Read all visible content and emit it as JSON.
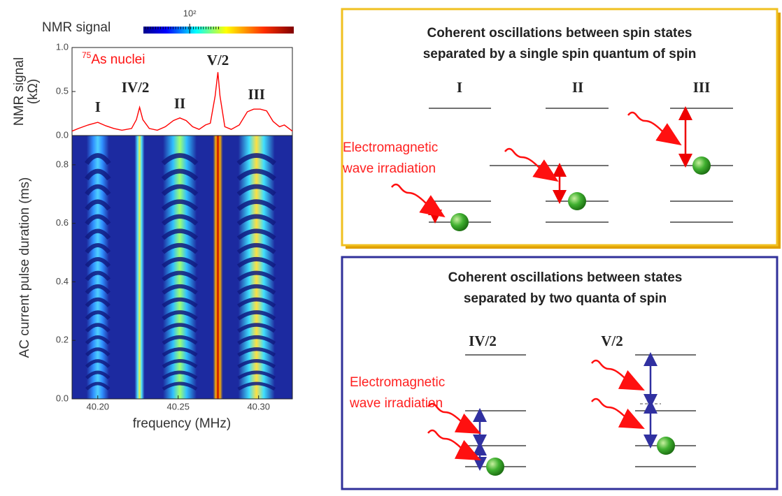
{
  "chart_data": [
    {
      "type": "line",
      "ylabel_lines": [
        "NMR signal",
        "(kΩ)"
      ],
      "annotation": {
        "superscript": "75",
        "text": "As nuclei"
      },
      "peak_labels": [
        "I",
        "IV/2",
        "II",
        "V/2",
        "III"
      ],
      "xlim": [
        40.184,
        40.321
      ],
      "ylim": [
        0,
        1
      ],
      "yticks": [
        {
          "value": 0,
          "label": "0.0"
        },
        {
          "value": 0.5,
          "label": "0.5"
        },
        {
          "value": 1,
          "label": "1.0"
        }
      ],
      "color": "#ff0000",
      "x": [
        40.184,
        40.188,
        40.194,
        40.2,
        40.205,
        40.21,
        40.215,
        40.221,
        40.224,
        40.226,
        40.228,
        40.232,
        40.237,
        40.242,
        40.247,
        40.251,
        40.255,
        40.259,
        40.263,
        40.267,
        40.27,
        40.273,
        40.2747,
        40.276,
        40.279,
        40.283,
        40.288,
        40.293,
        40.297,
        40.301,
        40.305,
        40.309,
        40.313,
        40.316,
        40.321
      ],
      "values": [
        0.05,
        0.08,
        0.12,
        0.15,
        0.11,
        0.08,
        0.06,
        0.08,
        0.18,
        0.32,
        0.18,
        0.08,
        0.06,
        0.1,
        0.17,
        0.2,
        0.17,
        0.1,
        0.07,
        0.12,
        0.14,
        0.45,
        0.72,
        0.45,
        0.1,
        0.07,
        0.12,
        0.27,
        0.3,
        0.3,
        0.28,
        0.16,
        0.1,
        0.12,
        0.05
      ]
    },
    {
      "type": "heatmap",
      "xlabel": "frequency (MHz)",
      "ylabel": "AC current pulse duration (ms)",
      "xlim": [
        40.184,
        40.321
      ],
      "ylim": [
        0,
        0.9
      ],
      "xticks": [
        {
          "value": 40.2,
          "label": "40.20"
        },
        {
          "value": 40.25,
          "label": "40.25"
        },
        {
          "value": 40.3,
          "label": "40.30"
        }
      ],
      "yticks": [
        {
          "value": 0,
          "label": "0.0"
        },
        {
          "value": 0.2,
          "label": "0.2"
        },
        {
          "value": 0.4,
          "label": "0.4"
        },
        {
          "value": 0.6,
          "label": "0.6"
        },
        {
          "value": 0.8,
          "label": "0.8"
        }
      ],
      "peaks": [
        40.2,
        40.226,
        40.251,
        40.2747,
        40.2987
      ],
      "colorbar": {
        "label": "NMR signal",
        "log_scale": true,
        "clim": [
          30,
          1500
        ],
        "ticks": [
          {
            "value": 100,
            "label": "10²"
          }
        ]
      }
    }
  ],
  "diagrams": {
    "single": {
      "title_lines": [
        "Coherent oscillations between spin states",
        "separated by a single spin quantum of spin"
      ],
      "levels": [
        "I",
        "II",
        "III"
      ],
      "irradiation_lines": [
        "Electromagnetic",
        "wave irradiation"
      ]
    },
    "double": {
      "title_lines": [
        "Coherent oscillations between states",
        "separated by two quanta of spin"
      ],
      "levels": [
        "IV/2",
        "V/2"
      ],
      "irradiation_lines": [
        "Electromagnetic",
        "wave irradiation"
      ]
    }
  }
}
